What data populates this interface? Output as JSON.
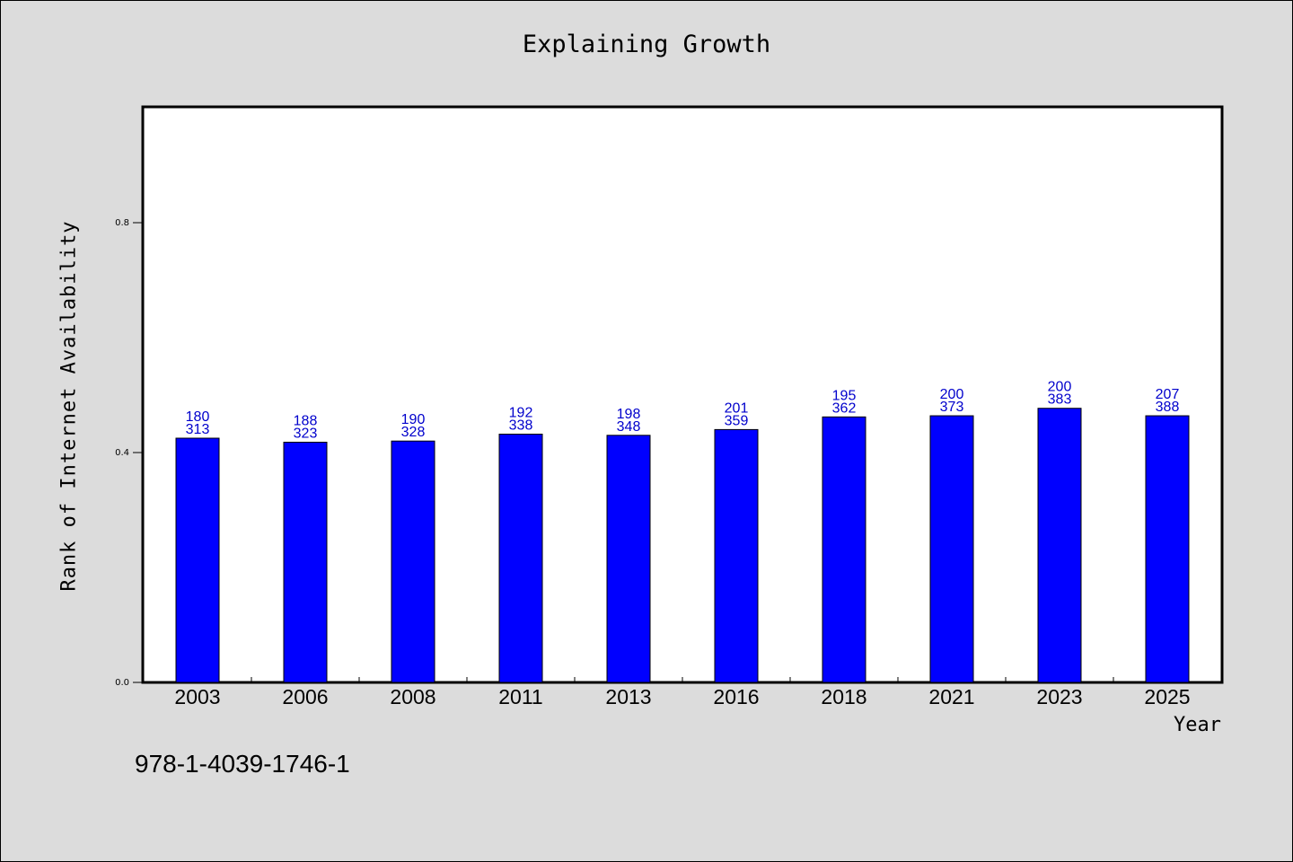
{
  "chart_data": {
    "type": "bar",
    "title": "Explaining Growth",
    "xlabel": "Year",
    "ylabel": "Rank of Internet Availability",
    "ylim": [
      0,
      1.0
    ],
    "yticks": [
      "0.0",
      "0.4",
      "0.8"
    ],
    "grid": false,
    "categories": [
      "2003",
      "2006",
      "2008",
      "2011",
      "2013",
      "2016",
      "2018",
      "2021",
      "2023",
      "2025"
    ],
    "values": [
      0.425,
      0.418,
      0.42,
      0.432,
      0.43,
      0.44,
      0.462,
      0.464,
      0.477,
      0.464
    ],
    "labels_top": [
      "180",
      "188",
      "190",
      "192",
      "198",
      "201",
      "195",
      "200",
      "200",
      "207"
    ],
    "labels_bottom": [
      "313",
      "323",
      "328",
      "338",
      "348",
      "359",
      "362",
      "373",
      "383",
      "388"
    ],
    "bar_color": "#0000ff",
    "label_color": "#0000cc"
  },
  "footnote": "978-1-4039-1746-1"
}
